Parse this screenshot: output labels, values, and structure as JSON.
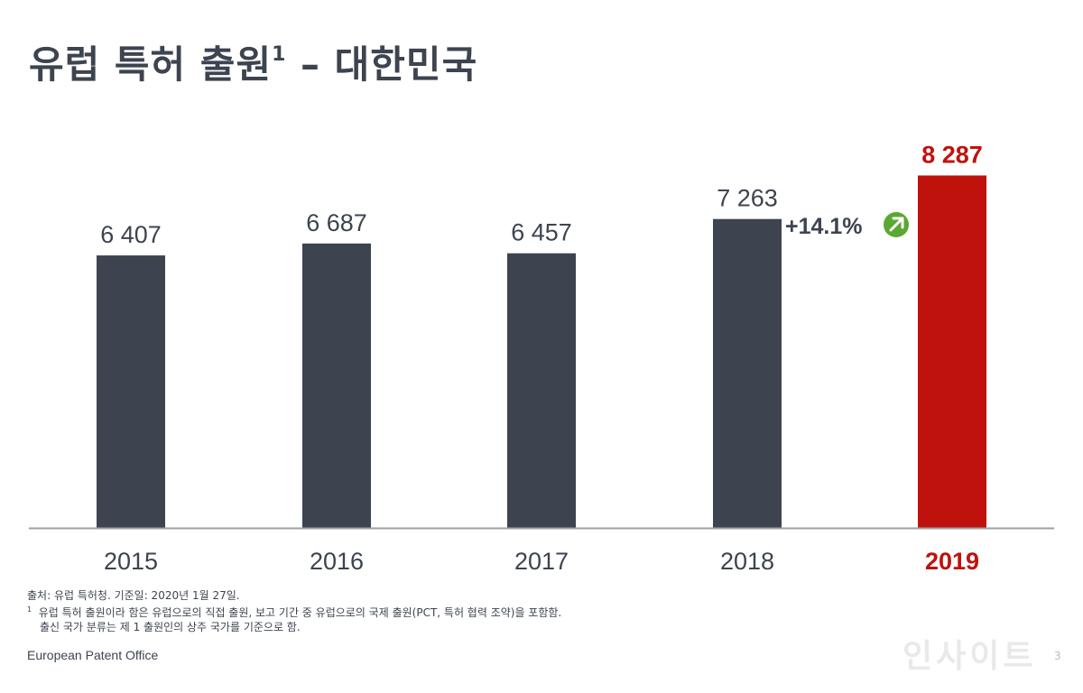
{
  "title": {
    "text": "유럽 특허 출원",
    "sup": "1",
    "suffix": " – 대한민국"
  },
  "chart_data": {
    "type": "bar",
    "categories": [
      "2015",
      "2016",
      "2017",
      "2018",
      "2019"
    ],
    "values": [
      6407,
      6687,
      6457,
      7263,
      8287
    ],
    "value_labels": [
      "6 407",
      "6 687",
      "6 457",
      "7 263",
      "8 287"
    ],
    "ylim": [
      0,
      8700
    ],
    "grid": false,
    "legend": "none",
    "colors": {
      "default_bar": "#3d4450",
      "highlight_bar": "#c0120c",
      "axis": "#9aa0a6",
      "label": "#3d4450",
      "highlight_label": "#c0120c"
    },
    "highlight_index": 4,
    "annotation": {
      "text": "+14.1%",
      "icon": "up-right-arrow-icon",
      "icon_color": "#5aa832",
      "text_color": "#3d4450"
    }
  },
  "footnotes": {
    "source": "출처: 유럽 특허청. 기준일: 2020년 1월 27일.",
    "note_mark": "1",
    "note_line1": "유럽 특허 출원이라 함은 유럽으로의 직접 출원, 보고 기간 중 유럽으로의 국제 출원(PCT, 특허 협력 조약)을 포함함.",
    "note_line2": "출신 국가 분류는 제 1 출원인의 상주 국가를 기준으로 함."
  },
  "footer": {
    "organization": "European Patent Office"
  },
  "watermark": "인사이트",
  "page_number": "3"
}
